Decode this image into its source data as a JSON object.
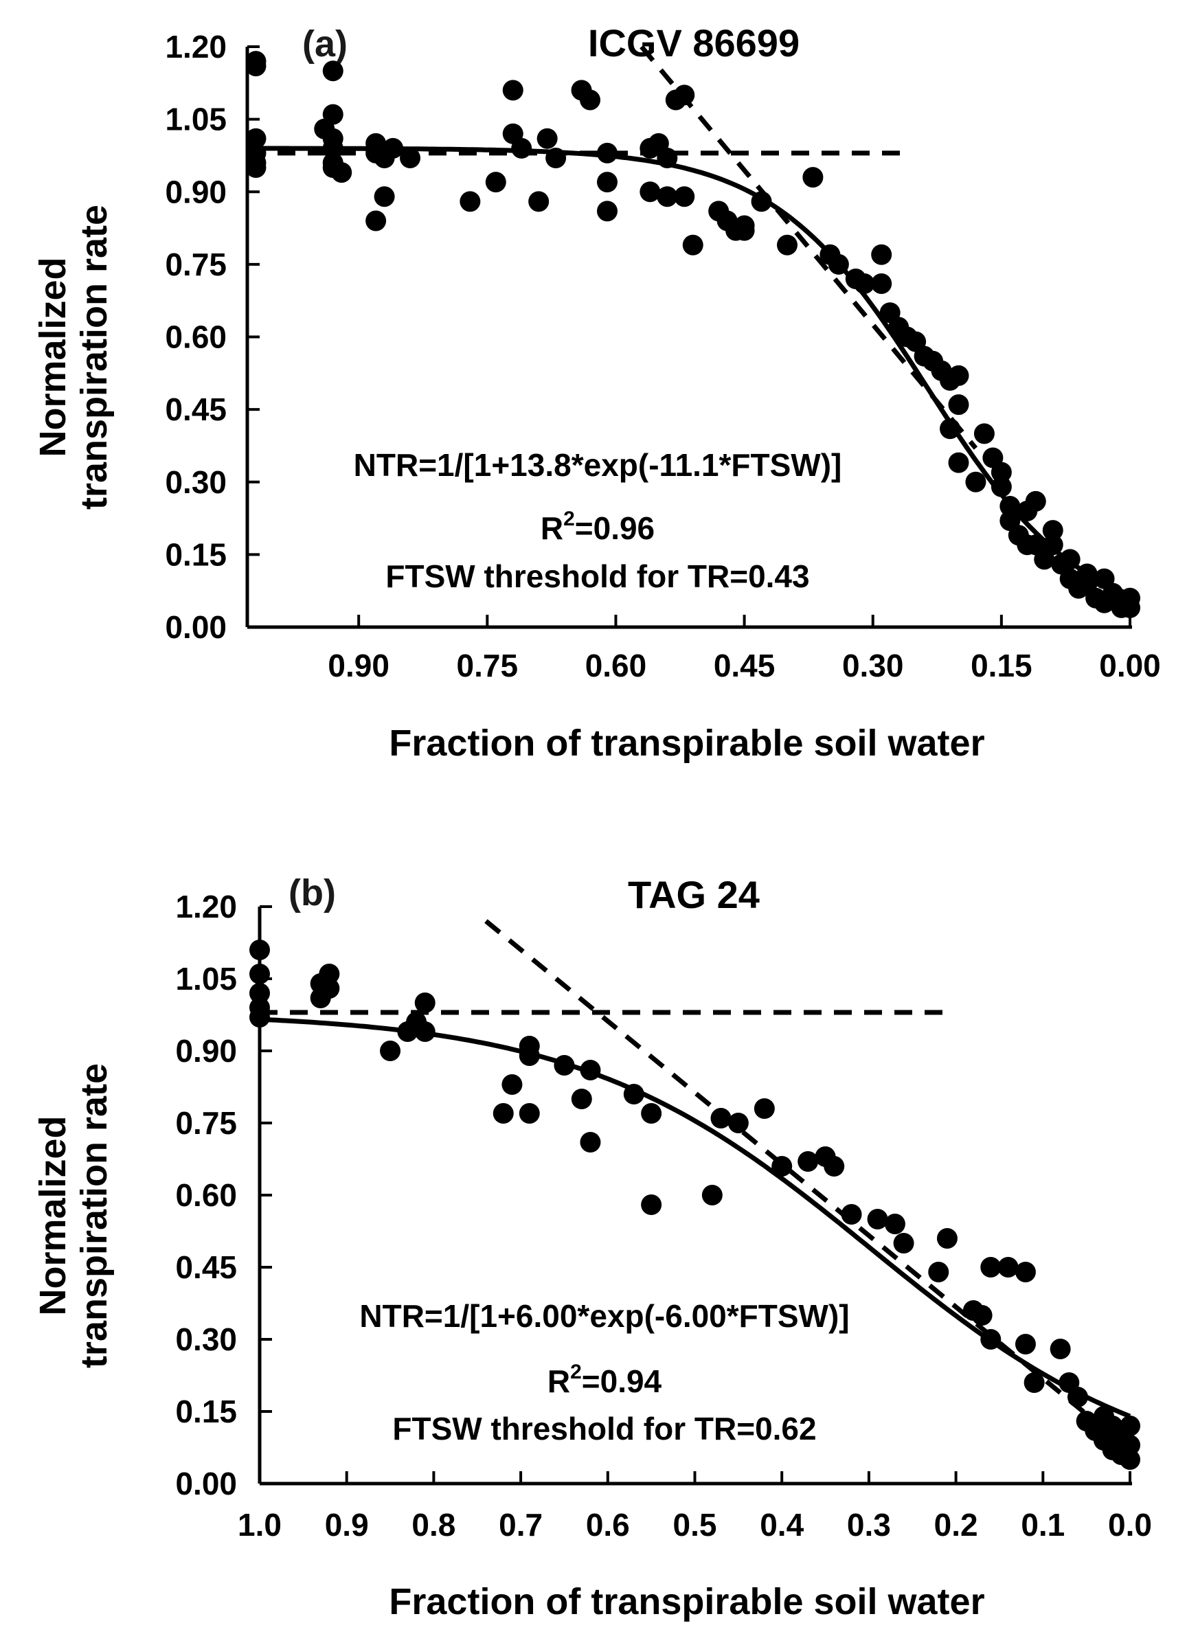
{
  "chart_data": [
    {
      "type": "scatter",
      "panel_label": "(a)",
      "title": "ICGV 86699",
      "xlabel": "Fraction of transpirable soil water",
      "ylabel_lines": [
        "Normalized",
        "transpiration rate"
      ],
      "x_reversed": true,
      "xlim": [
        1.03,
        0.0
      ],
      "ylim": [
        0.0,
        1.2
      ],
      "x_ticks": [
        {
          "value": 0.9,
          "label": "0.90"
        },
        {
          "value": 0.75,
          "label": "0.75"
        },
        {
          "value": 0.6,
          "label": "0.60"
        },
        {
          "value": 0.45,
          "label": "0.45"
        },
        {
          "value": 0.3,
          "label": "0.30"
        },
        {
          "value": 0.15,
          "label": "0.15"
        },
        {
          "value": 0.0,
          "label": "0.00"
        }
      ],
      "y_ticks": [
        {
          "value": 1.2,
          "label": "1.20"
        },
        {
          "value": 1.05,
          "label": "1.05"
        },
        {
          "value": 0.9,
          "label": "0.90"
        },
        {
          "value": 0.75,
          "label": "0.75"
        },
        {
          "value": 0.6,
          "label": "0.60"
        },
        {
          "value": 0.45,
          "label": "0.45"
        },
        {
          "value": 0.3,
          "label": "0.30"
        },
        {
          "value": 0.15,
          "label": "0.15"
        },
        {
          "value": 0.0,
          "label": "0.00"
        }
      ],
      "annotations": {
        "equation": "NTR=1/[1+13.8*exp(-11.1*FTSW)]",
        "r2_prefix": "R",
        "r2_sup": "2",
        "r2_value": "=0.96",
        "threshold": "FTSW threshold for TR=0.43"
      },
      "fit": {
        "a": 13.8,
        "b": 11.1,
        "scale": 0.99
      },
      "plateau_line": {
        "x_from": 1.03,
        "x_to": 0.26,
        "y": 0.98
      },
      "slope_line": {
        "x_from": 0.57,
        "y_from": 1.2,
        "x_to": 0.18,
        "y_to": 0.37
      },
      "points": [
        [
          1.02,
          1.16
        ],
        [
          1.02,
          1.17
        ],
        [
          1.02,
          1.01
        ],
        [
          1.02,
          0.98
        ],
        [
          1.02,
          0.96
        ],
        [
          1.02,
          0.95
        ],
        [
          0.93,
          1.15
        ],
        [
          0.93,
          1.06
        ],
        [
          0.93,
          1.01
        ],
        [
          0.93,
          0.99
        ],
        [
          0.93,
          0.96
        ],
        [
          0.93,
          0.95
        ],
        [
          0.94,
          1.03
        ],
        [
          0.92,
          0.94
        ],
        [
          0.88,
          1.0
        ],
        [
          0.88,
          0.98
        ],
        [
          0.87,
          0.97
        ],
        [
          0.86,
          0.99
        ],
        [
          0.87,
          0.89
        ],
        [
          0.88,
          0.84
        ],
        [
          0.84,
          0.97
        ],
        [
          0.77,
          0.88
        ],
        [
          0.74,
          0.92
        ],
        [
          0.72,
          1.11
        ],
        [
          0.72,
          1.02
        ],
        [
          0.71,
          0.99
        ],
        [
          0.69,
          0.88
        ],
        [
          0.68,
          1.01
        ],
        [
          0.67,
          0.97
        ],
        [
          0.64,
          1.11
        ],
        [
          0.63,
          1.09
        ],
        [
          0.61,
          0.98
        ],
        [
          0.61,
          0.92
        ],
        [
          0.61,
          0.86
        ],
        [
          0.56,
          0.99
        ],
        [
          0.56,
          0.9
        ],
        [
          0.55,
          1.0
        ],
        [
          0.54,
          0.97
        ],
        [
          0.54,
          0.89
        ],
        [
          0.53,
          1.09
        ],
        [
          0.52,
          1.1
        ],
        [
          0.52,
          0.89
        ],
        [
          0.51,
          0.79
        ],
        [
          0.48,
          0.86
        ],
        [
          0.47,
          0.84
        ],
        [
          0.46,
          0.82
        ],
        [
          0.45,
          0.83
        ],
        [
          0.45,
          0.82
        ],
        [
          0.43,
          0.88
        ],
        [
          0.4,
          0.79
        ],
        [
          0.37,
          0.93
        ],
        [
          0.35,
          0.77
        ],
        [
          0.34,
          0.75
        ],
        [
          0.32,
          0.72
        ],
        [
          0.31,
          0.71
        ],
        [
          0.29,
          0.77
        ],
        [
          0.29,
          0.71
        ],
        [
          0.28,
          0.65
        ],
        [
          0.27,
          0.62
        ],
        [
          0.26,
          0.6
        ],
        [
          0.25,
          0.59
        ],
        [
          0.24,
          0.56
        ],
        [
          0.23,
          0.55
        ],
        [
          0.22,
          0.53
        ],
        [
          0.21,
          0.51
        ],
        [
          0.2,
          0.52
        ],
        [
          0.2,
          0.46
        ],
        [
          0.21,
          0.41
        ],
        [
          0.2,
          0.34
        ],
        [
          0.18,
          0.3
        ],
        [
          0.17,
          0.4
        ],
        [
          0.16,
          0.35
        ],
        [
          0.15,
          0.32
        ],
        [
          0.15,
          0.29
        ],
        [
          0.14,
          0.25
        ],
        [
          0.14,
          0.22
        ],
        [
          0.13,
          0.19
        ],
        [
          0.12,
          0.24
        ],
        [
          0.11,
          0.26
        ],
        [
          0.11,
          0.17
        ],
        [
          0.12,
          0.17
        ],
        [
          0.1,
          0.14
        ],
        [
          0.09,
          0.2
        ],
        [
          0.09,
          0.17
        ],
        [
          0.08,
          0.13
        ],
        [
          0.07,
          0.14
        ],
        [
          0.07,
          0.1
        ],
        [
          0.06,
          0.08
        ],
        [
          0.05,
          0.11
        ],
        [
          0.05,
          0.09
        ],
        [
          0.04,
          0.06
        ],
        [
          0.03,
          0.1
        ],
        [
          0.03,
          0.05
        ],
        [
          0.02,
          0.07
        ],
        [
          0.01,
          0.05
        ],
        [
          0.01,
          0.04
        ],
        [
          0.0,
          0.06
        ],
        [
          0.0,
          0.04
        ]
      ]
    },
    {
      "type": "scatter",
      "panel_label": "(b)",
      "title": "TAG 24",
      "xlabel": "Fraction of transpirable soil water",
      "ylabel_lines": [
        "Normalized",
        "transpiration rate"
      ],
      "x_reversed": true,
      "xlim": [
        1.0,
        0.0
      ],
      "ylim": [
        0.0,
        1.2
      ],
      "x_ticks": [
        {
          "value": 1.0,
          "label": "1.0"
        },
        {
          "value": 0.9,
          "label": "0.9"
        },
        {
          "value": 0.8,
          "label": "0.8"
        },
        {
          "value": 0.7,
          "label": "0.7"
        },
        {
          "value": 0.6,
          "label": "0.6"
        },
        {
          "value": 0.5,
          "label": "0.5"
        },
        {
          "value": 0.4,
          "label": "0.4"
        },
        {
          "value": 0.3,
          "label": "0.3"
        },
        {
          "value": 0.2,
          "label": "0.2"
        },
        {
          "value": 0.1,
          "label": "0.1"
        },
        {
          "value": 0.0,
          "label": "0.0"
        }
      ],
      "y_ticks": [
        {
          "value": 1.2,
          "label": "1.20"
        },
        {
          "value": 1.05,
          "label": "1.05"
        },
        {
          "value": 0.9,
          "label": "0.90"
        },
        {
          "value": 0.75,
          "label": "0.75"
        },
        {
          "value": 0.6,
          "label": "0.60"
        },
        {
          "value": 0.45,
          "label": "0.45"
        },
        {
          "value": 0.3,
          "label": "0.30"
        },
        {
          "value": 0.15,
          "label": "0.15"
        },
        {
          "value": 0.0,
          "label": "0.00"
        }
      ],
      "annotations": {
        "equation": "NTR=1/[1+6.00*exp(-6.00*FTSW)]",
        "r2_prefix": "R",
        "r2_sup": "2",
        "r2_value": "=0.94",
        "threshold": "FTSW threshold for TR=0.62"
      },
      "fit": {
        "a": 6.0,
        "b": 6.0,
        "scale": 0.98
      },
      "plateau_line": {
        "x_from": 1.0,
        "x_to": 0.21,
        "y": 0.98
      },
      "slope_line": {
        "x_from": 0.74,
        "y_from": 1.17,
        "x_to": 0.0,
        "y_to": 0.07
      },
      "points": [
        [
          1.0,
          1.11
        ],
        [
          1.0,
          1.06
        ],
        [
          1.0,
          1.02
        ],
        [
          1.0,
          0.99
        ],
        [
          1.0,
          0.97
        ],
        [
          0.93,
          1.04
        ],
        [
          0.92,
          1.06
        ],
        [
          0.93,
          1.01
        ],
        [
          0.92,
          1.03
        ],
        [
          0.85,
          0.9
        ],
        [
          0.83,
          0.94
        ],
        [
          0.82,
          0.96
        ],
        [
          0.81,
          1.0
        ],
        [
          0.81,
          0.94
        ],
        [
          0.72,
          0.77
        ],
        [
          0.71,
          0.83
        ],
        [
          0.69,
          0.91
        ],
        [
          0.69,
          0.89
        ],
        [
          0.69,
          0.77
        ],
        [
          0.65,
          0.87
        ],
        [
          0.63,
          0.8
        ],
        [
          0.62,
          0.86
        ],
        [
          0.62,
          0.71
        ],
        [
          0.57,
          0.81
        ],
        [
          0.55,
          0.77
        ],
        [
          0.55,
          0.58
        ],
        [
          0.48,
          0.6
        ],
        [
          0.47,
          0.76
        ],
        [
          0.45,
          0.75
        ],
        [
          0.42,
          0.78
        ],
        [
          0.4,
          0.66
        ],
        [
          0.37,
          0.67
        ],
        [
          0.35,
          0.68
        ],
        [
          0.34,
          0.66
        ],
        [
          0.32,
          0.56
        ],
        [
          0.29,
          0.55
        ],
        [
          0.27,
          0.54
        ],
        [
          0.26,
          0.5
        ],
        [
          0.22,
          0.44
        ],
        [
          0.21,
          0.51
        ],
        [
          0.18,
          0.36
        ],
        [
          0.17,
          0.35
        ],
        [
          0.16,
          0.3
        ],
        [
          0.16,
          0.45
        ],
        [
          0.14,
          0.45
        ],
        [
          0.12,
          0.44
        ],
        [
          0.12,
          0.29
        ],
        [
          0.11,
          0.21
        ],
        [
          0.08,
          0.28
        ],
        [
          0.07,
          0.21
        ],
        [
          0.06,
          0.18
        ],
        [
          0.05,
          0.13
        ],
        [
          0.04,
          0.11
        ],
        [
          0.03,
          0.09
        ],
        [
          0.03,
          0.14
        ],
        [
          0.02,
          0.12
        ],
        [
          0.02,
          0.07
        ],
        [
          0.01,
          0.1
        ],
        [
          0.01,
          0.06
        ],
        [
          0.0,
          0.12
        ],
        [
          0.0,
          0.08
        ],
        [
          0.0,
          0.05
        ]
      ]
    }
  ]
}
